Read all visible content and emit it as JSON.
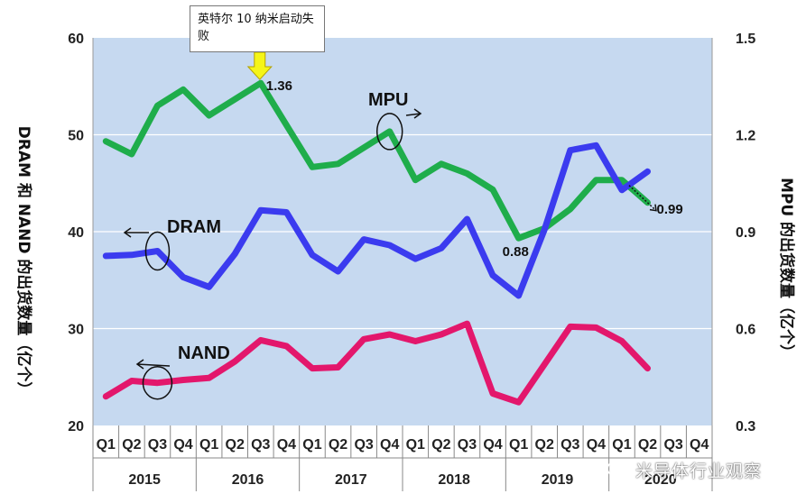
{
  "chart_data": {
    "type": "line",
    "x": [
      "Q1",
      "Q2",
      "Q3",
      "Q4",
      "Q1",
      "Q2",
      "Q3",
      "Q4",
      "Q1",
      "Q2",
      "Q3",
      "Q4",
      "Q1",
      "Q2",
      "Q3",
      "Q4",
      "Q1",
      "Q2",
      "Q3",
      "Q4",
      "Q1",
      "Q2",
      "Q3",
      "Q4"
    ],
    "years": [
      "2015",
      "2016",
      "2017",
      "2018",
      "2019",
      "2020"
    ],
    "left_axis": {
      "label": "DRAM 和 NAND 的出货数量（亿个）",
      "ylim": [
        20,
        60
      ],
      "ticks": [
        "20",
        "30",
        "40",
        "50",
        "60"
      ]
    },
    "right_axis": {
      "label": "MPU 的出货数量（亿个）",
      "ylim": [
        0.3,
        1.5
      ],
      "ticks": [
        "0.3",
        "0.6",
        "0.9",
        "1.2",
        "1.5"
      ]
    },
    "series": [
      {
        "name": "MPU",
        "axis": "right",
        "color": "#1fad4b",
        "values": [
          1.18,
          1.14,
          1.29,
          1.34,
          1.26,
          1.31,
          1.36,
          1.23,
          1.1,
          1.11,
          1.16,
          1.21,
          1.06,
          1.11,
          1.08,
          1.03,
          0.88,
          0.91,
          0.97,
          1.06,
          1.06,
          0.99,
          null,
          null
        ]
      },
      {
        "name": "DRAM",
        "axis": "left",
        "color": "#3b3bef",
        "values": [
          37.5,
          37.6,
          38.0,
          35.3,
          34.3,
          37.7,
          42.2,
          42.0,
          37.6,
          35.9,
          39.2,
          38.6,
          37.2,
          38.3,
          41.3,
          35.5,
          33.4,
          40.2,
          48.4,
          48.9,
          44.3,
          46.2,
          null,
          null
        ]
      },
      {
        "name": "NAND",
        "axis": "left",
        "color": "#e3176c",
        "values": [
          23.0,
          24.6,
          24.4,
          24.7,
          24.9,
          26.6,
          28.8,
          28.2,
          25.9,
          26.0,
          28.9,
          29.4,
          28.7,
          29.4,
          30.5,
          23.3,
          22.4,
          26.3,
          30.2,
          30.1,
          28.7,
          25.9,
          null,
          null
        ]
      }
    ],
    "annotations": [
      {
        "text": "1.36",
        "series": "MPU",
        "index": 6
      },
      {
        "text": "0.88",
        "series": "MPU",
        "index": 16
      },
      {
        "text": "0.99",
        "series": "MPU",
        "index": 21
      }
    ],
    "callout": "英特尔 10 纳米启动失败",
    "grid": true,
    "legend": "inline"
  },
  "watermark": "米导体行业观察",
  "colors": {
    "plot_bg": "#c6d9f0",
    "grid": "#ffffff",
    "arrow": "#f5f518"
  }
}
